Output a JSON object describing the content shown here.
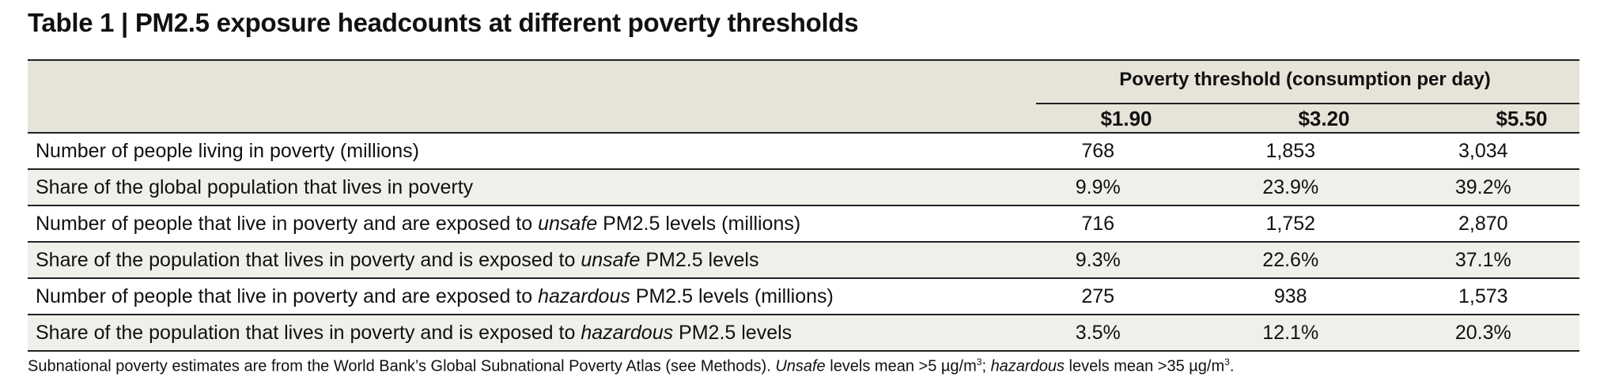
{
  "title": "Table 1 | PM2.5 exposure headcounts at different poverty thresholds",
  "group_header": "Poverty threshold (consumption per day)",
  "columns": [
    "$1.90",
    "$3.20",
    "$5.50"
  ],
  "rows": [
    {
      "pre": "Number of people living in poverty (millions)",
      "em": "",
      "post": "",
      "values": [
        "768",
        "1,853",
        "3,034"
      ]
    },
    {
      "pre": "Share of the global population that lives in poverty",
      "em": "",
      "post": "",
      "values": [
        "9.9%",
        "23.9%",
        "39.2%"
      ]
    },
    {
      "pre": "Number of people that live in poverty and are exposed to ",
      "em": "unsafe",
      "post": " PM2.5 levels (millions)",
      "values": [
        "716",
        "1,752",
        "2,870"
      ]
    },
    {
      "pre": "Share of the population that lives in poverty and is exposed to ",
      "em": "unsafe",
      "post": " PM2.5 levels",
      "values": [
        "9.3%",
        "22.6%",
        "37.1%"
      ]
    },
    {
      "pre": "Number of people that live in poverty and are exposed to ",
      "em": "hazardous",
      "post": " PM2.5 levels (millions)",
      "values": [
        "275",
        "938",
        "1,573"
      ]
    },
    {
      "pre": "Share of the population that lives in poverty and is exposed to ",
      "em": "hazardous",
      "post": " PM2.5 levels",
      "values": [
        "3.5%",
        "12.1%",
        "20.3%"
      ]
    }
  ],
  "footnote": {
    "part1": "Subnational poverty estimates are from the World Bank’s Global Subnational Poverty Atlas (see Methods). ",
    "em1": "Unsafe",
    "part2": " levels mean >5 µg/m",
    "sup1": "3",
    "part3": "; ",
    "em2": "hazardous",
    "part4": " levels mean >35 µg/m",
    "sup2": "3",
    "part5": "."
  }
}
